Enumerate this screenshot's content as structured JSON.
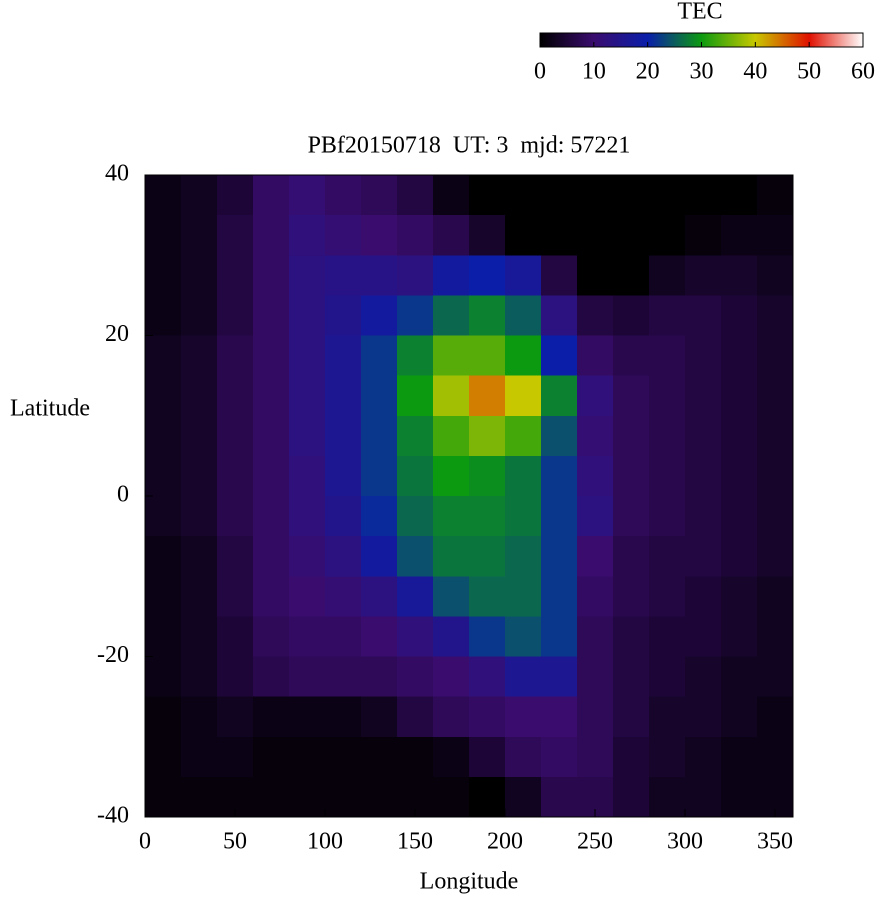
{
  "chart_data": {
    "type": "heatmap",
    "title": "PBf20150718  UT: 3  mjd: 57221",
    "xlabel": "Longitude",
    "ylabel": "Latitude",
    "colorbar_label": "TEC",
    "x": [
      10,
      30,
      50,
      70,
      90,
      110,
      130,
      150,
      170,
      190,
      210,
      230,
      250,
      270,
      290,
      310,
      330,
      350
    ],
    "y": [
      37.5,
      32.5,
      27.5,
      22.5,
      17.5,
      12.5,
      7.5,
      2.5,
      -2.5,
      -7.5,
      -12.5,
      -17.5,
      -22.5,
      -27.5,
      -32.5,
      -37.5
    ],
    "z": [
      [
        2,
        3,
        5,
        9,
        11,
        9,
        8,
        6,
        2,
        0,
        0,
        0,
        0,
        0,
        0,
        0,
        0,
        1
      ],
      [
        2,
        3,
        6,
        9,
        12,
        11,
        10,
        9,
        7,
        4,
        0,
        0,
        0,
        0,
        0,
        1,
        2,
        2
      ],
      [
        2,
        3,
        6,
        9,
        13,
        14,
        14,
        13,
        18,
        20,
        17,
        6,
        0,
        0,
        3,
        4,
        4,
        3
      ],
      [
        2,
        3,
        6,
        9,
        13,
        15,
        18,
        22,
        26,
        28,
        25,
        13,
        6,
        5,
        6,
        6,
        5,
        4
      ],
      [
        3,
        4,
        7,
        9,
        13,
        16,
        22,
        28,
        34,
        34,
        30,
        20,
        9,
        7,
        7,
        6,
        5,
        4
      ],
      [
        3,
        4,
        7,
        9,
        13,
        16,
        22,
        30,
        38,
        44,
        40,
        28,
        12,
        8,
        7,
        6,
        5,
        4
      ],
      [
        3,
        4,
        7,
        9,
        13,
        16,
        22,
        28,
        33,
        36,
        33,
        24,
        11,
        8,
        7,
        6,
        5,
        4
      ],
      [
        3,
        4,
        7,
        9,
        12,
        16,
        22,
        27,
        30,
        29,
        27,
        22,
        12,
        8,
        7,
        6,
        5,
        4
      ],
      [
        3,
        4,
        7,
        9,
        12,
        15,
        21,
        26,
        28,
        28,
        27,
        22,
        13,
        8,
        7,
        6,
        5,
        4
      ],
      [
        2,
        3,
        6,
        9,
        11,
        13,
        18,
        24,
        27,
        27,
        26,
        22,
        10,
        7,
        6,
        6,
        5,
        4
      ],
      [
        2,
        3,
        6,
        9,
        10,
        11,
        13,
        17,
        24,
        26,
        26,
        22,
        9,
        7,
        6,
        5,
        4,
        3
      ],
      [
        2,
        3,
        5,
        8,
        9,
        9,
        10,
        12,
        15,
        22,
        24,
        22,
        8,
        6,
        5,
        5,
        4,
        3
      ],
      [
        2,
        3,
        5,
        7,
        8,
        8,
        8,
        9,
        10,
        12,
        16,
        16,
        8,
        6,
        5,
        4,
        3,
        3
      ],
      [
        1,
        2,
        3,
        2,
        2,
        2,
        3,
        6,
        8,
        9,
        10,
        10,
        8,
        6,
        4,
        4,
        3,
        2
      ],
      [
        1,
        2,
        2,
        1,
        1,
        1,
        1,
        1,
        2,
        5,
        8,
        9,
        8,
        5,
        4,
        3,
        2,
        2
      ],
      [
        1,
        1,
        1,
        1,
        1,
        1,
        1,
        1,
        1,
        0,
        3,
        7,
        7,
        5,
        3,
        3,
        2,
        2
      ]
    ],
    "xlim": [
      0,
      360
    ],
    "xticks": [
      0,
      50,
      100,
      150,
      200,
      250,
      300,
      350
    ],
    "ylim": [
      -40,
      40
    ],
    "yticks": [
      -40,
      -20,
      0,
      20,
      40
    ],
    "zlim": [
      0,
      60
    ],
    "zticks": [
      0,
      10,
      20,
      30,
      40,
      50,
      60
    ],
    "colors": [
      "#000000",
      "#3a0c6e",
      "#0a1eaa",
      "#0c9a10",
      "#c8c800",
      "#e01000",
      "#ffffff"
    ]
  }
}
